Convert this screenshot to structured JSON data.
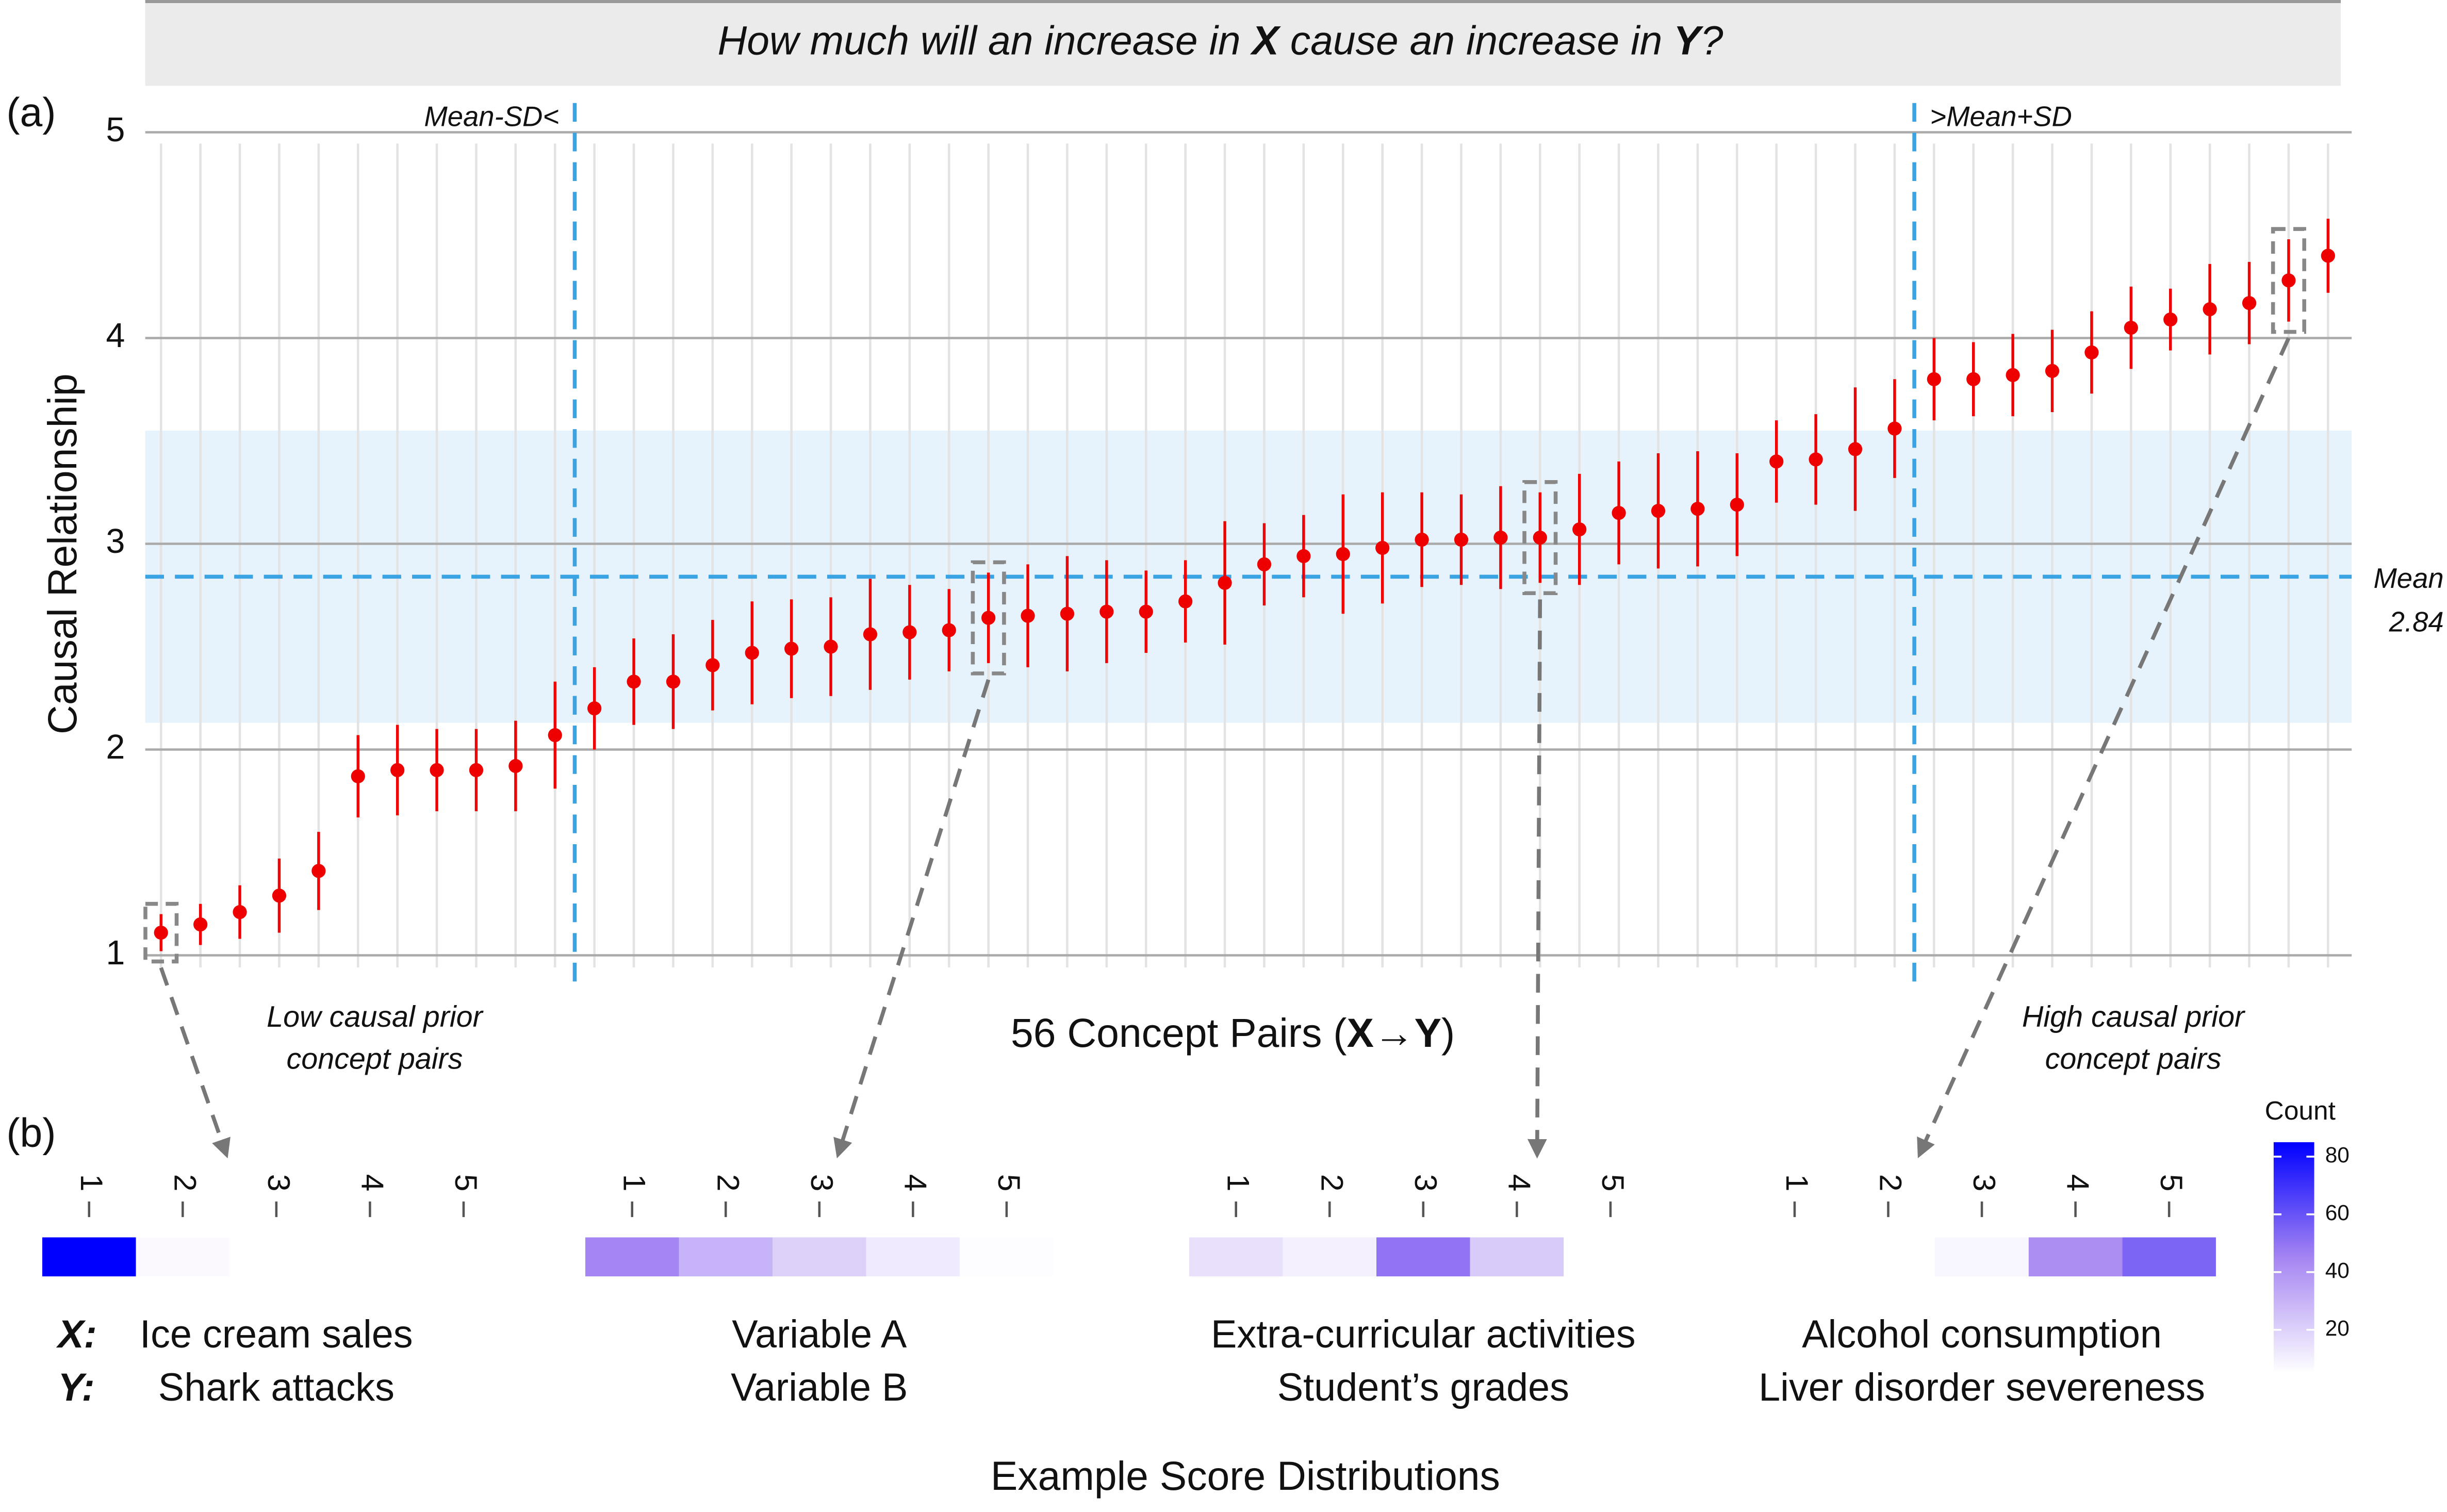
{
  "chart_data": [
    {
      "type": "errorbar",
      "title_parts": [
        "How much will an increase in ",
        "X",
        " cause an increase in ",
        "Y",
        "?"
      ],
      "y_label": "Causal Relationship",
      "x_label_parts": [
        "56 Concept Pairs (",
        "X→Y",
        ")"
      ],
      "panel_label": "(a)",
      "x": [
        1,
        2,
        3,
        4,
        5,
        6,
        7,
        8,
        9,
        10,
        11,
        12,
        13,
        14,
        15,
        16,
        17,
        18,
        19,
        20,
        21,
        22,
        23,
        24,
        25,
        26,
        27,
        28,
        29,
        30,
        31,
        32,
        33,
        34,
        35,
        36,
        37,
        38,
        39,
        40,
        41,
        42,
        43,
        44,
        45,
        46,
        47,
        48,
        49,
        50,
        51,
        52,
        53,
        54,
        55,
        56
      ],
      "values": [
        1.11,
        1.15,
        1.21,
        1.29,
        1.41,
        1.87,
        1.9,
        1.9,
        1.9,
        1.92,
        2.07,
        2.2,
        2.33,
        2.33,
        2.41,
        2.47,
        2.49,
        2.5,
        2.56,
        2.57,
        2.58,
        2.64,
        2.65,
        2.66,
        2.67,
        2.67,
        2.72,
        2.81,
        2.9,
        2.94,
        2.95,
        2.98,
        3.02,
        3.02,
        3.03,
        3.03,
        3.07,
        3.15,
        3.16,
        3.17,
        3.19,
        3.4,
        3.41,
        3.46,
        3.56,
        3.8,
        3.8,
        3.82,
        3.84,
        3.93,
        4.05,
        4.09,
        4.14,
        4.17,
        4.28,
        4.4
      ],
      "errors": [
        0.09,
        0.1,
        0.13,
        0.18,
        0.19,
        0.2,
        0.22,
        0.2,
        0.2,
        0.22,
        0.26,
        0.2,
        0.21,
        0.23,
        0.22,
        0.25,
        0.24,
        0.24,
        0.27,
        0.23,
        0.2,
        0.22,
        0.25,
        0.28,
        0.25,
        0.2,
        0.2,
        0.3,
        0.2,
        0.2,
        0.29,
        0.27,
        0.23,
        0.22,
        0.25,
        0.22,
        0.27,
        0.25,
        0.28,
        0.28,
        0.25,
        0.2,
        0.22,
        0.3,
        0.24,
        0.2,
        0.18,
        0.2,
        0.2,
        0.2,
        0.2,
        0.15,
        0.22,
        0.2,
        0.2,
        0.18
      ],
      "color": "#ee0000",
      "xlim": [
        0.6,
        56.6
      ],
      "ylim": [
        0.85,
        5.15
      ],
      "yticks": [
        1,
        2,
        3,
        4,
        5
      ],
      "grid": true,
      "mean": 2.84,
      "mean_label": "Mean",
      "sd_band": [
        2.13,
        3.55
      ],
      "band_color": "#e6f3fd",
      "line_color": "#3aa3e3",
      "cutoffs": [
        {
          "x": 11.5,
          "label": "Mean-SD<"
        },
        {
          "x": 45.5,
          "label": ">Mean+SD"
        }
      ],
      "group_labels": [
        [
          "Low causal prior",
          "concept pairs"
        ],
        [
          "High causal prior",
          "concept pairs"
        ]
      ]
    },
    {
      "type": "heatmap",
      "panel_label": "(b)",
      "title": "Example Score Distributions",
      "legend_title": "Count",
      "scores": [
        1,
        2,
        3,
        4,
        5
      ],
      "clim": [
        5,
        85
      ],
      "cticks": [
        20,
        40,
        60,
        80
      ],
      "colors": [
        "#ffffff",
        "#a585f2",
        "#0000ff"
      ],
      "x_tag": "X:",
      "y_tag": "Y:",
      "items": [
        {
          "point_x": 1,
          "x_name": "Ice cream sales",
          "y_name": "Shark attacks",
          "counts": [
            85,
            7,
            5,
            null,
            null
          ]
        },
        {
          "point_x": 22,
          "x_name": "Variable A",
          "y_name": "Variable B",
          "counts": [
            45,
            30,
            20,
            12,
            6
          ]
        },
        {
          "point_x": 36,
          "x_name": "Extra-curricular activities",
          "y_name": "Student’s grades",
          "counts": [
            15,
            10,
            50,
            22,
            null
          ]
        },
        {
          "point_x": 55,
          "x_name": "Alcohol consumption",
          "y_name": "Liver disorder severeness",
          "counts": [
            null,
            null,
            8,
            42,
            55
          ]
        }
      ]
    }
  ]
}
